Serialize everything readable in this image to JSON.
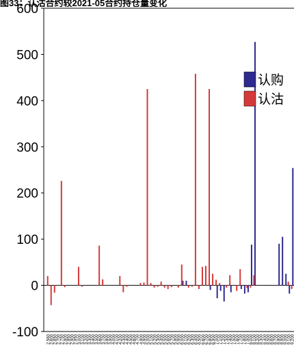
{
  "chart_data": {
    "type": "bar",
    "title": "图33：认沽合约较2021-05合约持仓量变化",
    "xlabel": "",
    "ylabel": "",
    "ylim": [
      -100,
      600
    ],
    "yticks": [
      -100,
      0,
      100,
      200,
      300,
      400,
      500,
      600
    ],
    "grid": false,
    "legend_position": "right",
    "categories": [
      "2.560",
      "2.600",
      "2.650",
      "2.700",
      "2.750",
      "2.800",
      "2.850",
      "2.900",
      "2.950",
      "3.000",
      "3.100",
      "3.200",
      "3.300",
      "3.400",
      "3.500",
      "3.600",
      "3.700",
      "3.800",
      "3.900",
      "4.000",
      "4.100",
      "4.200",
      "4.300",
      "4.400",
      "4.500",
      "4.600",
      "4.700",
      "4.800",
      "4.900",
      "5.000",
      "5.100",
      "5.200",
      "5.300",
      "5.400",
      "5.500",
      "5.600",
      "5.700",
      "5.800",
      "5.900",
      "6.000",
      "6.100",
      "6.200",
      "6.300",
      "6.400",
      "6.500",
      "6.600",
      "6.700",
      "6.800",
      "6.900",
      "7.000",
      "7.100",
      "7.200",
      "7.300",
      "7.400",
      "7.500",
      "7.600",
      "7.700",
      "7.800",
      "7.900",
      "8.000",
      "8.100",
      "8.200",
      "8.300",
      "8.400",
      "8.500",
      "8.600",
      "8.700",
      "8.800",
      "8.900",
      "9.000",
      "9.100",
      "9.200"
    ],
    "series": [
      {
        "name": "认购",
        "color": "#2e2a8f",
        "values": [
          0,
          0,
          0,
          0,
          0,
          0,
          0,
          0,
          0,
          0,
          0,
          0,
          0,
          0,
          0,
          0,
          0,
          0,
          0,
          0,
          0,
          0,
          0,
          0,
          0,
          0,
          0,
          0,
          0,
          0,
          0,
          0,
          0,
          0,
          0,
          0,
          0,
          0,
          0,
          10,
          10,
          0,
          0,
          0,
          0,
          0,
          0,
          -10,
          0,
          -28,
          -12,
          -35,
          0,
          -15,
          0,
          0,
          -8,
          -18,
          -15,
          88,
          527,
          0,
          0,
          0,
          0,
          0,
          0,
          90,
          105,
          25,
          -18,
          254
        ]
      },
      {
        "name": "认沽",
        "color": "#d43a3a",
        "values": [
          20,
          -43,
          -16,
          0,
          226,
          -4,
          0,
          0,
          0,
          40,
          -3,
          0,
          0,
          0,
          0,
          86,
          13,
          0,
          0,
          0,
          0,
          20,
          -15,
          -3,
          0,
          0,
          0,
          5,
          6,
          425,
          5,
          -5,
          -3,
          8,
          -5,
          -8,
          -4,
          0,
          -5,
          45,
          0,
          -5,
          -3,
          458,
          -8,
          40,
          42,
          425,
          25,
          12,
          5,
          0,
          -5,
          22,
          0,
          -12,
          35,
          0,
          -6,
          -5,
          22,
          0,
          0,
          0,
          0,
          0,
          0,
          0,
          0,
          0,
          8,
          -8
        ]
      }
    ]
  }
}
